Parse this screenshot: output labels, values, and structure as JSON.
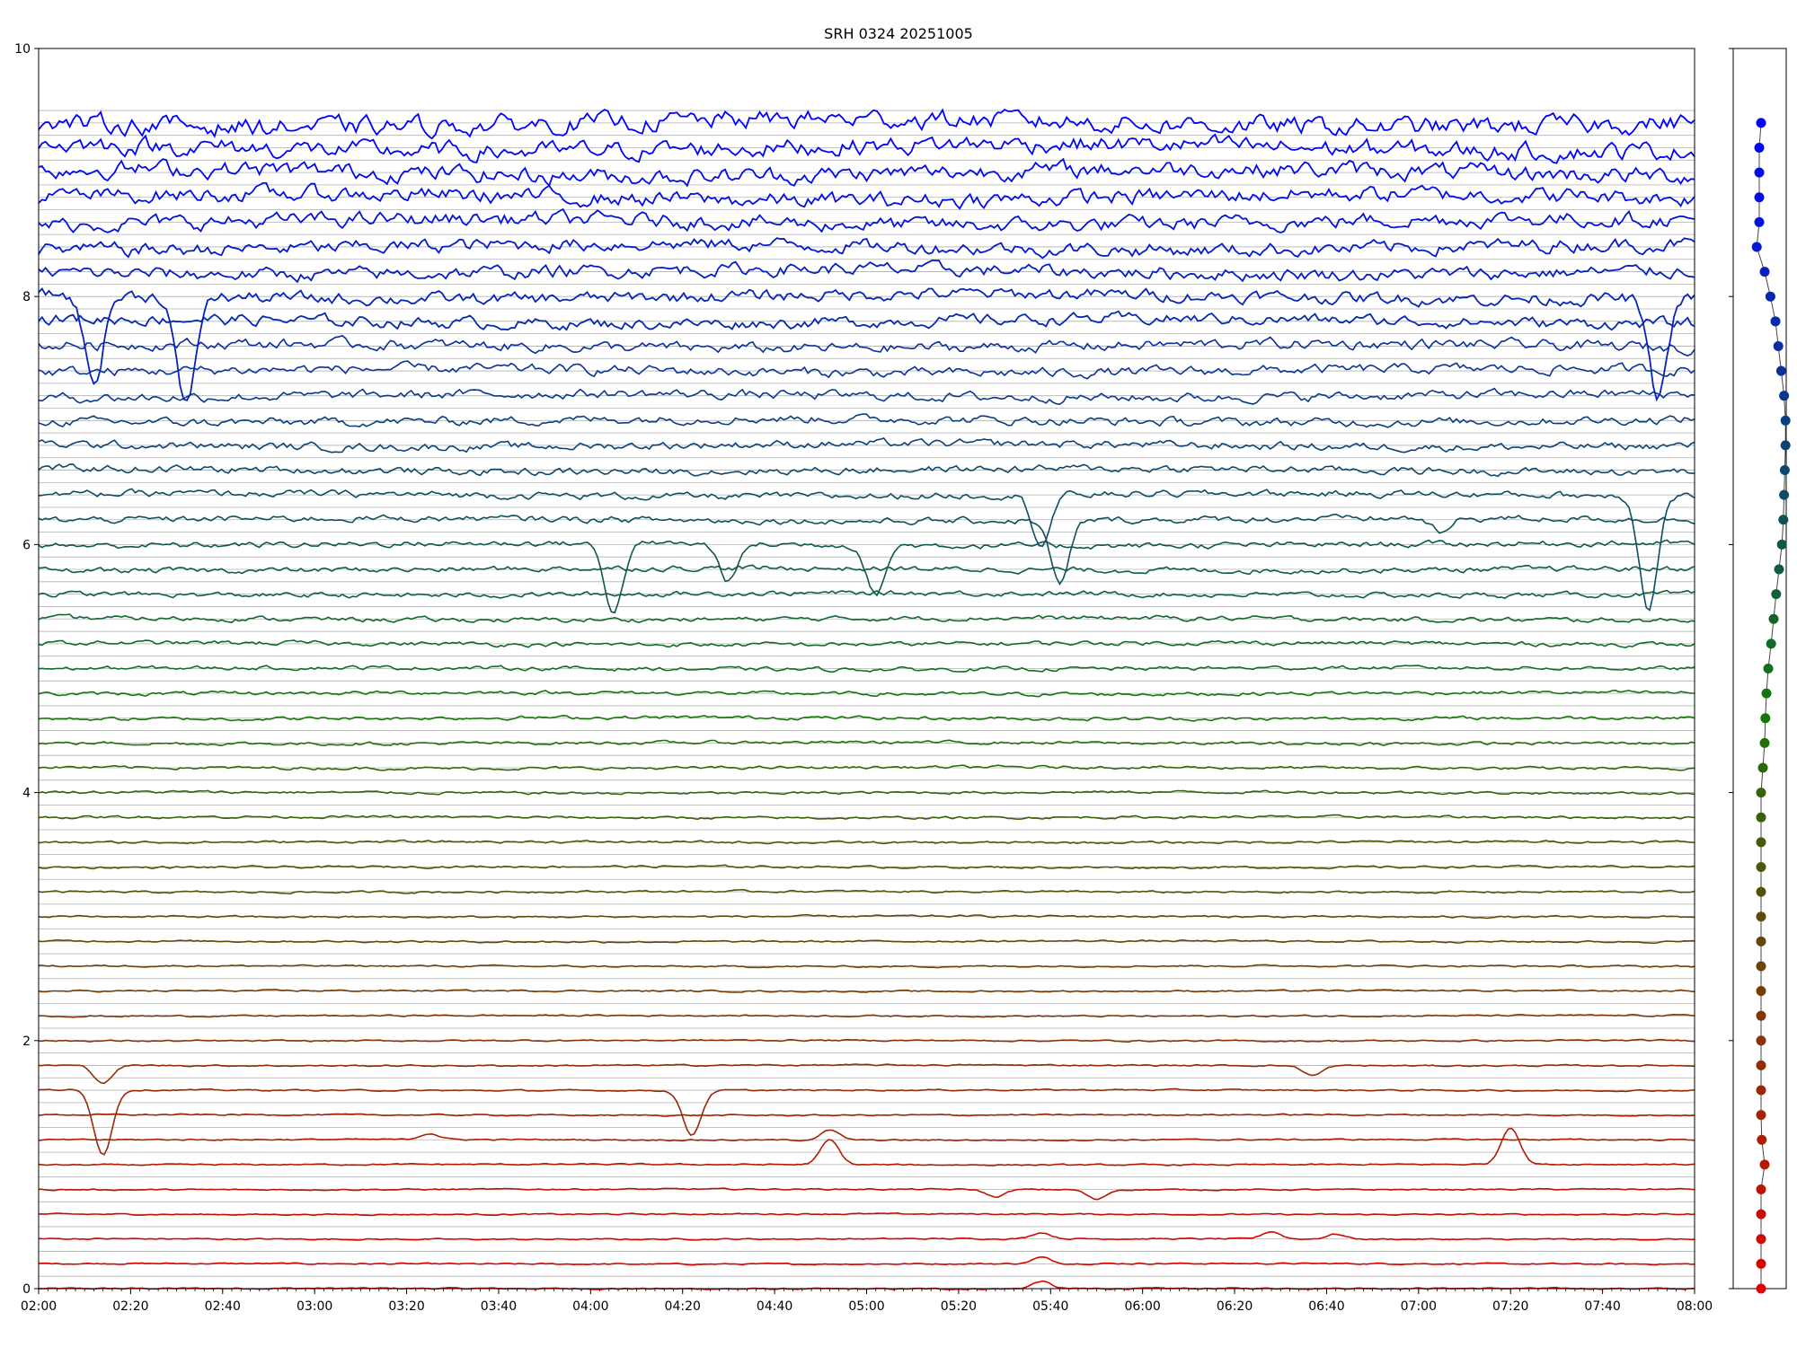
{
  "chart_data": [
    {
      "type": "line",
      "title": "SRH 0324 20251005",
      "xlabel": "",
      "ylabel": "",
      "x_range": [
        "02:00",
        "08:00"
      ],
      "ylim": [
        0,
        10
      ],
      "x_ticks": [
        "02:00",
        "02:20",
        "02:40",
        "03:00",
        "03:20",
        "03:40",
        "04:00",
        "04:20",
        "04:40",
        "05:00",
        "05:20",
        "05:40",
        "06:00",
        "06:20",
        "06:40",
        "07:00",
        "07:20",
        "07:40",
        "08:00"
      ],
      "y_ticks": [
        "0",
        "2",
        "4",
        "6",
        "8",
        "10"
      ],
      "grid": "horizontal lines at each trace baseline",
      "legend": "none",
      "color_start": "#e00000",
      "color_end": "#0000ff",
      "trace_count": 48,
      "trace_spacing": 0.2,
      "series_note_events": [
        {
          "trace": 0,
          "time": "05:38",
          "depth": -0.06
        },
        {
          "trace": 1,
          "time": "05:38",
          "depth": -0.05
        },
        {
          "trace": 2,
          "time": "05:38",
          "depth": -0.05
        },
        {
          "trace": 2,
          "time": "06:28",
          "depth": -0.06
        },
        {
          "trace": 2,
          "time": "06:42",
          "depth": -0.04
        },
        {
          "trace": 4,
          "time": "05:28",
          "depth": 0.06
        },
        {
          "trace": 4,
          "time": "05:50",
          "depth": 0.08
        },
        {
          "trace": 5,
          "time": "04:52",
          "depth": -0.2
        },
        {
          "trace": 5,
          "time": "07:20",
          "depth": -0.3
        },
        {
          "trace": 6,
          "time": "03:25",
          "depth": -0.05
        },
        {
          "trace": 6,
          "time": "04:52",
          "depth": -0.08
        },
        {
          "trace": 8,
          "time": "02:14",
          "depth": 0.52
        },
        {
          "trace": 8,
          "time": "04:22",
          "depth": 0.36
        },
        {
          "trace": 9,
          "time": "02:14",
          "depth": 0.14
        },
        {
          "trace": 9,
          "time": "06:37",
          "depth": 0.08
        },
        {
          "trace": 30,
          "time": "04:05",
          "depth": 0.55
        },
        {
          "trace": 30,
          "time": "04:30",
          "depth": 0.3
        },
        {
          "trace": 30,
          "time": "05:02",
          "depth": 0.4
        },
        {
          "trace": 31,
          "time": "05:42",
          "depth": 0.52
        },
        {
          "trace": 31,
          "time": "07:05",
          "depth": 0.12
        },
        {
          "trace": 32,
          "time": "05:38",
          "depth": 0.4
        },
        {
          "trace": 32,
          "time": "07:50",
          "depth": 0.9
        },
        {
          "trace": 40,
          "time": "02:12",
          "depth": 0.7
        },
        {
          "trace": 40,
          "time": "02:32",
          "depth": 0.9
        },
        {
          "trace": 40,
          "time": "07:52",
          "depth": 0.8
        }
      ]
    },
    {
      "type": "scatter",
      "title": "",
      "ylim": [
        0,
        10
      ],
      "points": [
        {
          "x": 0.0,
          "y": 0.0
        },
        {
          "x": 0.0,
          "y": 0.2
        },
        {
          "x": 0.0,
          "y": 0.4
        },
        {
          "x": 0.0,
          "y": 0.6
        },
        {
          "x": 0.0,
          "y": 0.8
        },
        {
          "x": 0.1,
          "y": 1.0
        },
        {
          "x": 0.02,
          "y": 1.2
        },
        {
          "x": 0.0,
          "y": 1.4
        },
        {
          "x": 0.0,
          "y": 1.6
        },
        {
          "x": 0.0,
          "y": 1.8
        },
        {
          "x": 0.0,
          "y": 2.0
        },
        {
          "x": 0.0,
          "y": 2.2
        },
        {
          "x": 0.0,
          "y": 2.4
        },
        {
          "x": 0.0,
          "y": 2.6
        },
        {
          "x": 0.0,
          "y": 2.8
        },
        {
          "x": 0.0,
          "y": 3.0
        },
        {
          "x": 0.0,
          "y": 3.2
        },
        {
          "x": 0.0,
          "y": 3.4
        },
        {
          "x": 0.0,
          "y": 3.6
        },
        {
          "x": 0.0,
          "y": 3.8
        },
        {
          "x": 0.0,
          "y": 4.0
        },
        {
          "x": 0.05,
          "y": 4.2
        },
        {
          "x": 0.1,
          "y": 4.4
        },
        {
          "x": 0.12,
          "y": 4.6
        },
        {
          "x": 0.15,
          "y": 4.8
        },
        {
          "x": 0.2,
          "y": 5.0
        },
        {
          "x": 0.28,
          "y": 5.2
        },
        {
          "x": 0.35,
          "y": 5.4
        },
        {
          "x": 0.42,
          "y": 5.6
        },
        {
          "x": 0.5,
          "y": 5.8
        },
        {
          "x": 0.58,
          "y": 6.0
        },
        {
          "x": 0.62,
          "y": 6.2
        },
        {
          "x": 0.64,
          "y": 6.4
        },
        {
          "x": 0.66,
          "y": 6.6
        },
        {
          "x": 0.68,
          "y": 6.8
        },
        {
          "x": 0.68,
          "y": 7.0
        },
        {
          "x": 0.64,
          "y": 7.2
        },
        {
          "x": 0.56,
          "y": 7.4
        },
        {
          "x": 0.48,
          "y": 7.6
        },
        {
          "x": 0.4,
          "y": 7.8
        },
        {
          "x": 0.26,
          "y": 8.0
        },
        {
          "x": 0.1,
          "y": 8.2
        },
        {
          "x": -0.12,
          "y": 8.4
        },
        {
          "x": -0.05,
          "y": 8.6
        },
        {
          "x": -0.05,
          "y": 8.8
        },
        {
          "x": -0.05,
          "y": 9.0
        },
        {
          "x": -0.05,
          "y": 9.2
        },
        {
          "x": 0.0,
          "y": 9.4
        }
      ]
    }
  ]
}
